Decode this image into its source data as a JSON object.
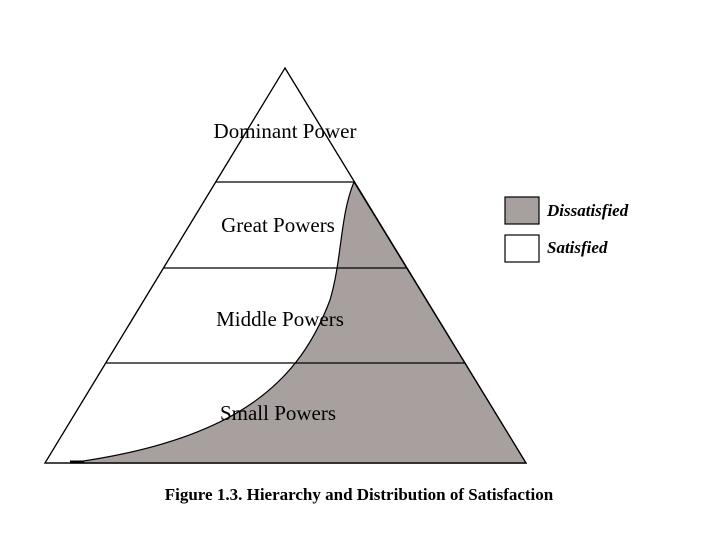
{
  "tiers": [
    {
      "label": "Dominant Power"
    },
    {
      "label": "Great Powers"
    },
    {
      "label": "Middle Powers"
    },
    {
      "label": "Small Powers"
    }
  ],
  "legend": [
    {
      "label": "Dissatisfied",
      "color": "#a7a09f"
    },
    {
      "label": "Satisfied",
      "color": "#ffffff"
    }
  ],
  "caption": "Figure 1.3. Hierarchy and Distribution of Satisfaction"
}
